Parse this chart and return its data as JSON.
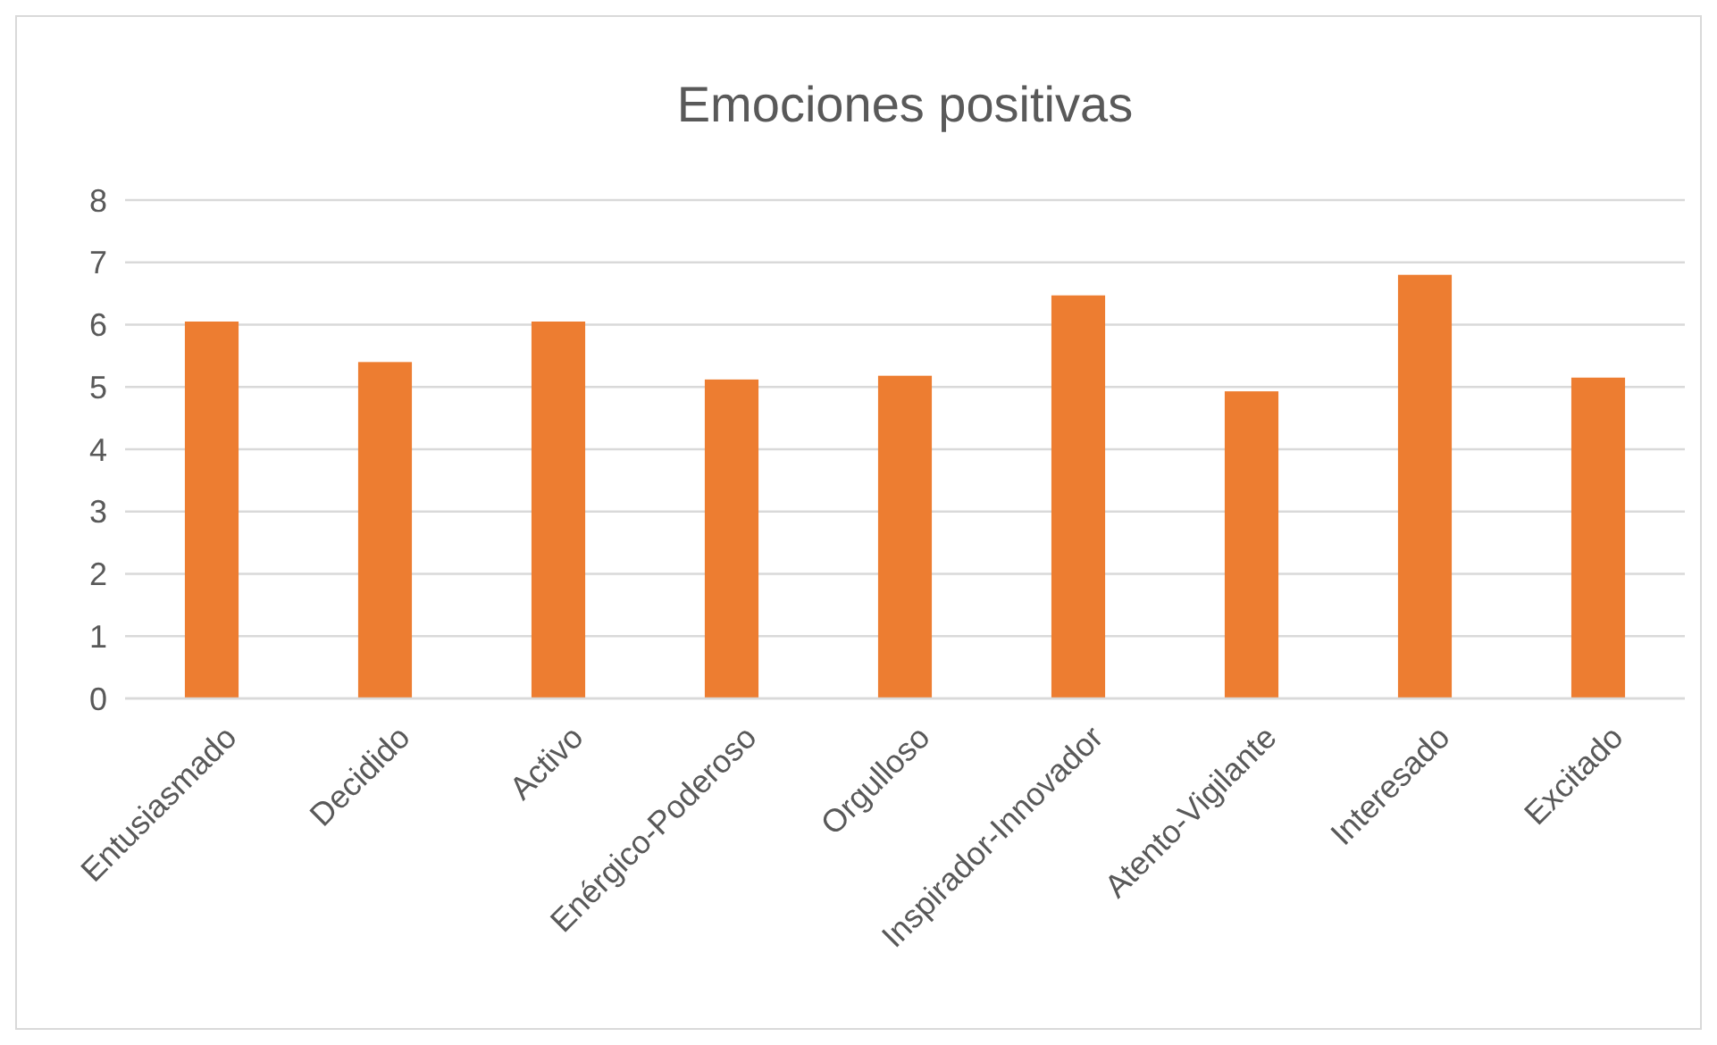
{
  "chart_data": {
    "type": "bar",
    "title": "Emociones positivas",
    "categories": [
      "Entusiasmado",
      "Decidido",
      "Activo",
      "Enérgico-Poderoso",
      "Orgulloso",
      "Inspirador-Innovador",
      "Atento-Vigilante",
      "Interesado",
      "Excitado"
    ],
    "values": [
      6.05,
      5.4,
      6.05,
      5.12,
      5.18,
      6.47,
      4.93,
      6.8,
      5.15
    ],
    "color": "#ed7d31",
    "ylim": [
      0,
      8
    ],
    "yticks": [
      0,
      1,
      2,
      3,
      4,
      5,
      6,
      7,
      8
    ],
    "grid": "y"
  }
}
